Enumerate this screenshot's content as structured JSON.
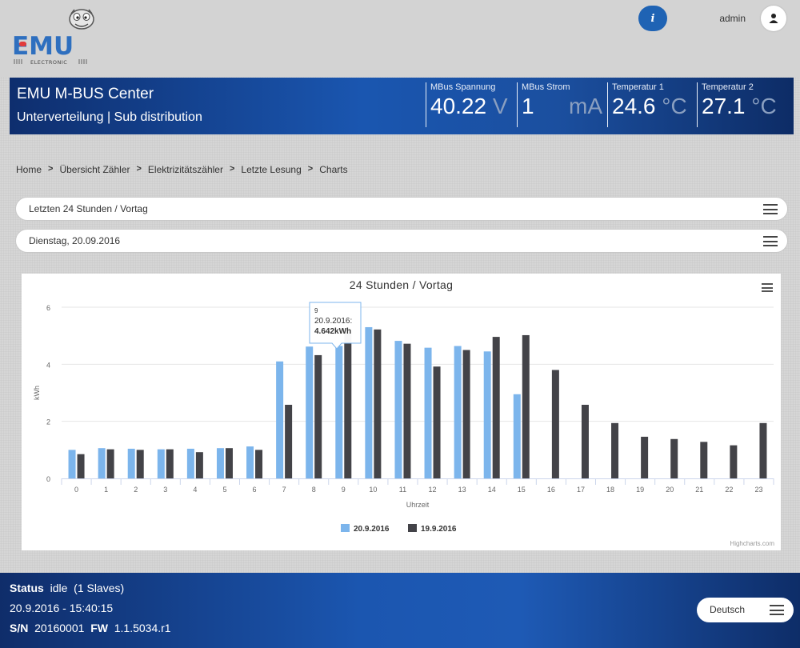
{
  "logo": {
    "text": "EMU",
    "subtext": "ELECTRONIC"
  },
  "topbar": {
    "info_label": "i",
    "user": "admin"
  },
  "banner": {
    "title": "EMU M-BUS Center",
    "subtitle": "Unterverteilung | Sub distribution",
    "metrics": [
      {
        "label": "MBus Spannung",
        "value": "40.22",
        "unit": "V"
      },
      {
        "label": "MBus Strom",
        "value": "1",
        "unit": "mA"
      },
      {
        "label": "Temperatur 1",
        "value": "24.6",
        "unit": "°C"
      },
      {
        "label": "Temperatur 2",
        "value": "27.1",
        "unit": "°C"
      }
    ]
  },
  "breadcrumb": [
    "Home",
    "Übersicht Zähler",
    "Elektrizitätszähler",
    "Letzte Lesung",
    "Charts"
  ],
  "breadcrumb_separator": ">",
  "selects": {
    "range": "Letzten 24 Stunden / Vortag",
    "date": "Dienstag, 20.09.2016"
  },
  "chart": {
    "credits": "Highcharts.com"
  },
  "tooltip": {
    "header": "9",
    "series": "20.9.2016:",
    "value": "4.642kWh"
  },
  "chart_data": {
    "type": "bar",
    "title": "24 Stunden / Vortag",
    "xlabel": "Uhrzeit",
    "ylabel": "kWh",
    "ylim": [
      0,
      6
    ],
    "yticks": [
      0,
      2,
      4,
      6
    ],
    "grid": true,
    "legend_position": "bottom",
    "categories": [
      "0",
      "1",
      "2",
      "3",
      "4",
      "5",
      "6",
      "7",
      "8",
      "9",
      "10",
      "11",
      "12",
      "13",
      "14",
      "15",
      "16",
      "17",
      "18",
      "19",
      "20",
      "21",
      "22",
      "23"
    ],
    "series": [
      {
        "name": "20.9.2016",
        "color": "#7cb5ec",
        "values": [
          1.0,
          1.06,
          1.04,
          1.02,
          1.04,
          1.06,
          1.12,
          4.1,
          4.62,
          4.642,
          5.3,
          4.82,
          4.58,
          4.64,
          4.45,
          2.95,
          null,
          null,
          null,
          null,
          null,
          null,
          null,
          null
        ]
      },
      {
        "name": "19.9.2016",
        "color": "#434348",
        "values": [
          0.85,
          1.02,
          1.0,
          1.02,
          0.92,
          1.06,
          1.0,
          2.58,
          4.32,
          5.08,
          5.22,
          4.72,
          3.92,
          4.5,
          4.96,
          5.02,
          3.8,
          2.58,
          1.94,
          1.46,
          1.38,
          1.28,
          1.16,
          1.94
        ]
      }
    ]
  },
  "footer": {
    "status_label": "Status",
    "status_value": "idle  (1 Slaves)",
    "datetime": "20.9.2016 - 15:40:15",
    "sn_label": "S/N",
    "sn_value": "20160001",
    "fw_label": "FW",
    "fw_value": "1.1.5034.r1",
    "language": "Deutsch"
  },
  "colors": {
    "brand": "#1a56b0",
    "info": "#1f63b4",
    "series_a": "#7cb5ec",
    "series_b": "#434348"
  }
}
